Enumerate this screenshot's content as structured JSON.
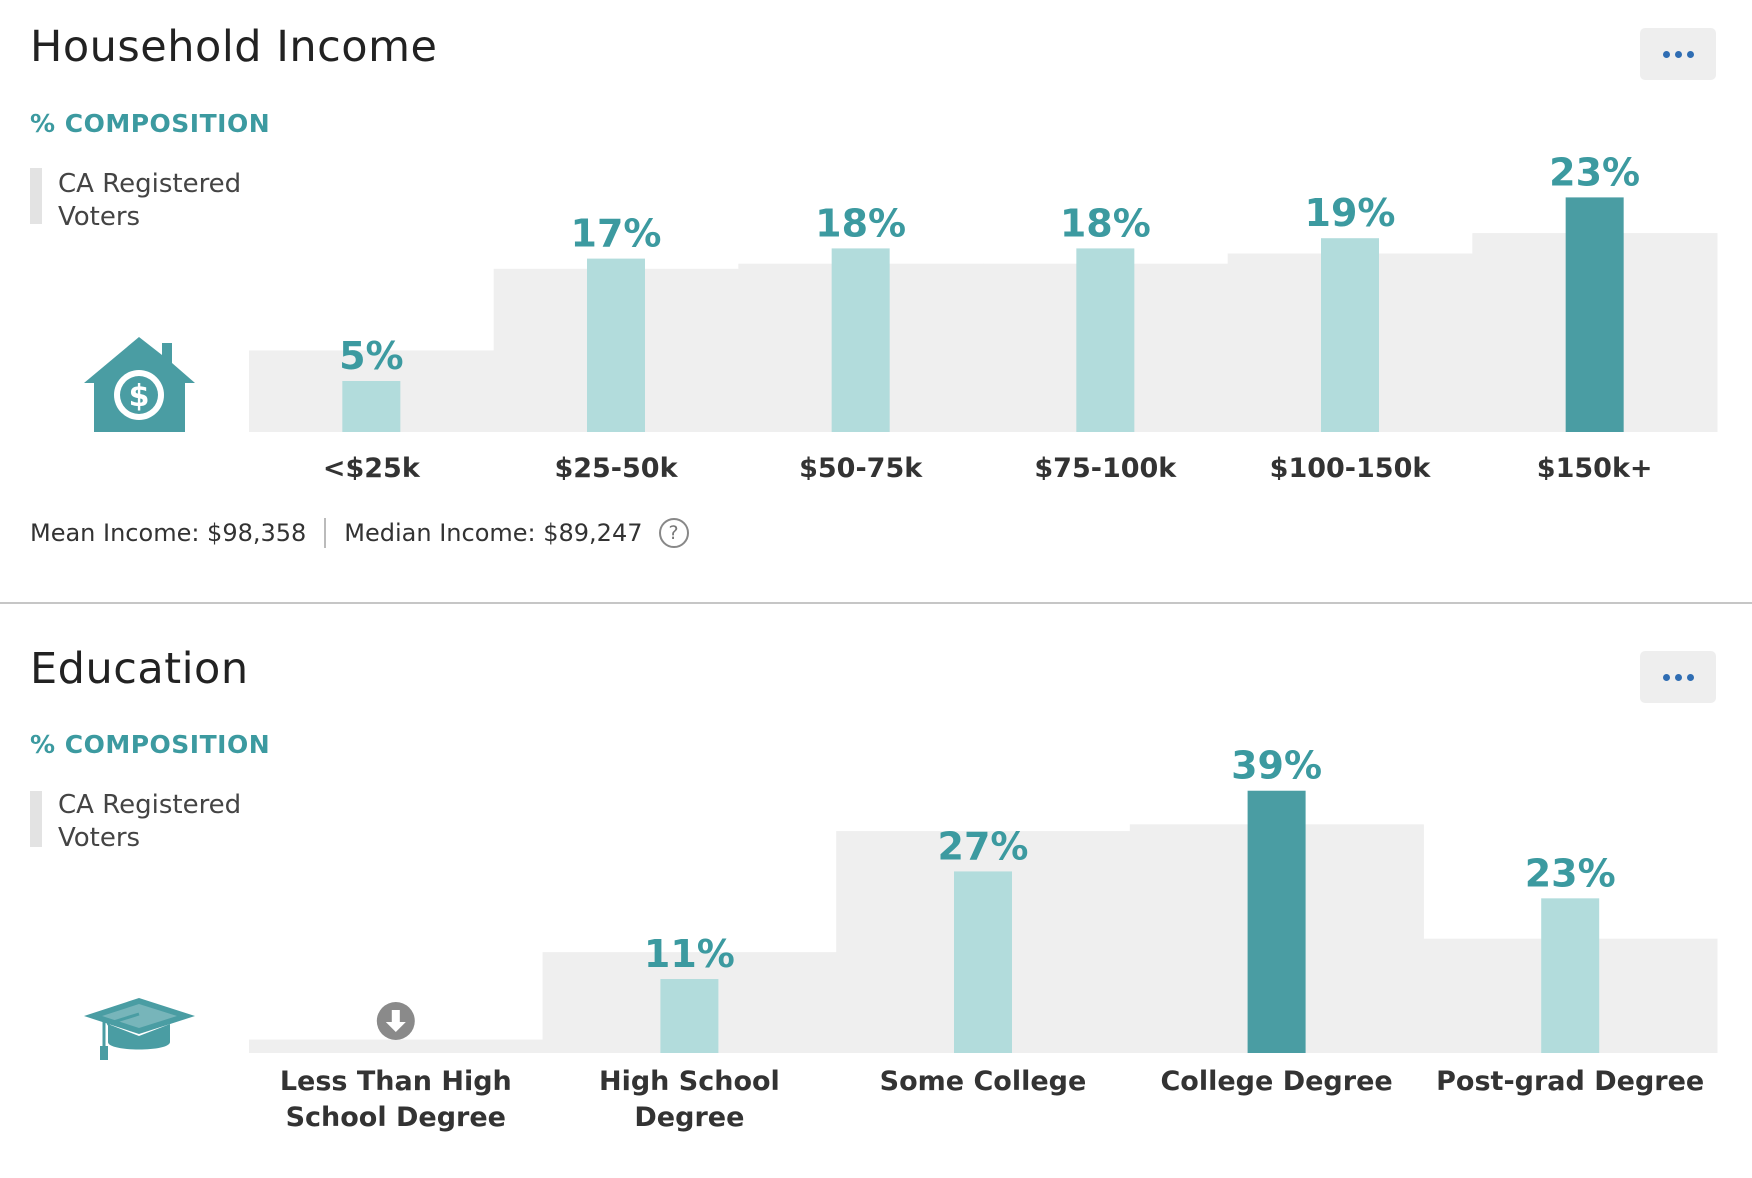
{
  "household_income": {
    "title": "Household Income",
    "composition_label": "% COMPOSITION",
    "legend_label": "CA Registered Voters",
    "icon": "house-dollar-icon",
    "mean_income": "Mean Income: $98,358",
    "median_income": "Median Income: $89,247",
    "help_symbol": "?"
  },
  "education": {
    "title": "Education",
    "composition_label": "% COMPOSITION",
    "legend_label": "CA Registered Voters",
    "icon": "graduation-cap-icon"
  },
  "colors": {
    "accent": "#3c9aa0",
    "bar_light": "#b2dcdc",
    "bar_dark": "#4a9da3",
    "background_step": "#efefef",
    "link_blue": "#2f6db3"
  },
  "chart_data": [
    {
      "type": "bar",
      "title": "Household Income",
      "categories": [
        "<$25k",
        "$25-50k",
        "$50-75k",
        "$75-100k",
        "$100-150k",
        "$150k+"
      ],
      "values": [
        5,
        17,
        18,
        18,
        19,
        23
      ],
      "value_labels": [
        "5%",
        "17%",
        "18%",
        "18%",
        "19%",
        "23%"
      ],
      "background_values": [
        8,
        16,
        16.5,
        16.5,
        17.5,
        19.5
      ],
      "highlight_index": 5,
      "ylim": [
        0,
        25
      ]
    },
    {
      "type": "bar",
      "title": "Education",
      "categories": [
        "Less Than High School Degree",
        "High School Degree",
        "Some College",
        "College Degree",
        "Post-grad Degree"
      ],
      "category_lines": [
        [
          "Less Than High",
          "School Degree"
        ],
        [
          "High School",
          "Degree"
        ],
        [
          "Some College"
        ],
        [
          "College Degree"
        ],
        [
          "Post-grad Degree"
        ]
      ],
      "values": [
        0,
        11,
        27,
        39,
        23
      ],
      "value_labels": [
        "",
        "11%",
        "27%",
        "39%",
        "23%"
      ],
      "background_values": [
        2,
        15,
        33,
        34,
        17
      ],
      "highlight_index": 3,
      "below_icon_index": 0,
      "ylim": [
        0,
        40
      ]
    }
  ]
}
